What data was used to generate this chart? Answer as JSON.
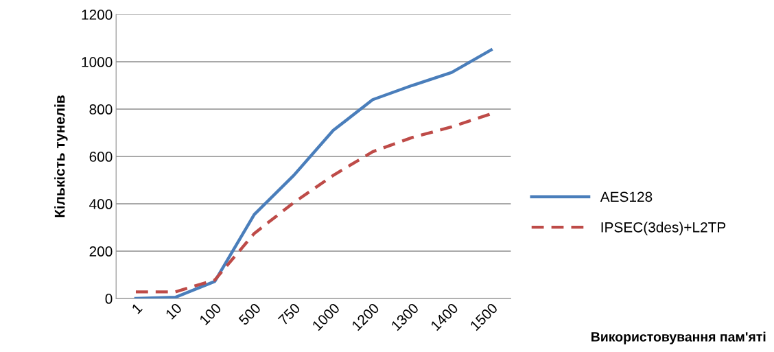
{
  "chart_data": {
    "type": "line",
    "annotations": [
      "Використовування пам'яті"
    ],
    "ylabel": "Кількість тунелів",
    "categories": [
      "1",
      "10",
      "100",
      "500",
      "750",
      "1000",
      "1200",
      "1300",
      "1400",
      "1500"
    ],
    "series": [
      {
        "name": "AES128",
        "color": "#4a7ebb",
        "line_style": "solid",
        "values": [
          0,
          5,
          72,
          355,
          520,
          710,
          840,
          900,
          955,
          1050
        ]
      },
      {
        "name": "IPSEC(3des)+L2TP",
        "color": "#be4b48",
        "line_style": "dashed",
        "values": [
          28,
          28,
          78,
          275,
          405,
          520,
          620,
          680,
          725,
          780
        ]
      }
    ],
    "ylim": [
      0,
      1200
    ],
    "yticks": [
      0,
      200,
      400,
      600,
      800,
      1000,
      1200
    ],
    "grid": "y",
    "legend": "right",
    "marker": "none"
  }
}
